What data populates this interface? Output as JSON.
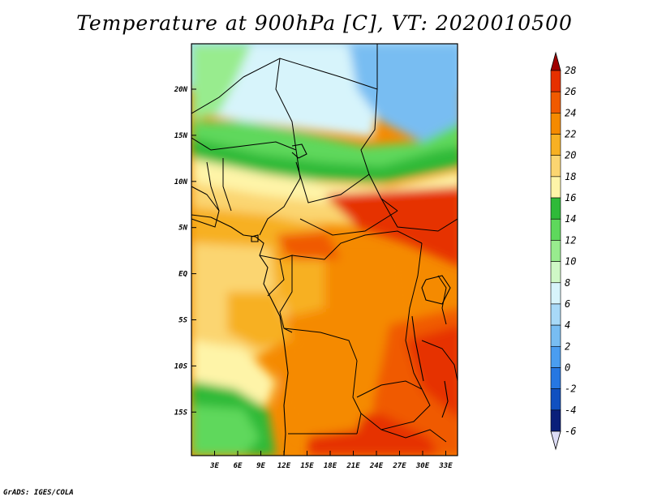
{
  "title": "Temperature at 900hPa [C], VT: 2020010500",
  "credit": "GrADS: IGES/COLA",
  "map": {
    "lat_ticks": [
      "20N",
      "15N",
      "10N",
      "5N",
      "EQ",
      "5S",
      "10S",
      "15S"
    ],
    "lon_ticks": [
      "3E",
      "6E",
      "9E",
      "12E",
      "15E",
      "18E",
      "21E",
      "24E",
      "27E",
      "30E",
      "33E"
    ]
  },
  "colorbar": {
    "levels": [
      "28",
      "26",
      "24",
      "22",
      "20",
      "18",
      "16",
      "14",
      "12",
      "10",
      "8",
      "6",
      "4",
      "2",
      "0",
      "-2",
      "-4",
      "-6"
    ],
    "colors": [
      "#a00000",
      "#e63000",
      "#f05a00",
      "#f58a00",
      "#f7b023",
      "#fbd571",
      "#fef4a8",
      "#2fba39",
      "#5ed85c",
      "#98ec8e",
      "#cff8c6",
      "#d7f4fb",
      "#a8d9f7",
      "#78bdf2",
      "#4a9df0",
      "#2677e2",
      "#1050c0",
      "#0a1f7a",
      "#dcdcf5"
    ]
  },
  "chart_data": {
    "type": "heatmap",
    "title": "Temperature at 900hPa [C], VT: 2020010500",
    "variable": "Temperature at 900hPa",
    "units": "C",
    "valid_time": "2020010500",
    "x_ticks": [
      "3E",
      "6E",
      "9E",
      "12E",
      "15E",
      "18E",
      "21E",
      "24E",
      "27E",
      "30E",
      "33E"
    ],
    "y_ticks": [
      "20N",
      "15N",
      "10N",
      "5N",
      "EQ",
      "5S",
      "10S",
      "15S"
    ],
    "colorbar_range": [
      -6,
      28
    ],
    "colorbar_step": 2
  }
}
